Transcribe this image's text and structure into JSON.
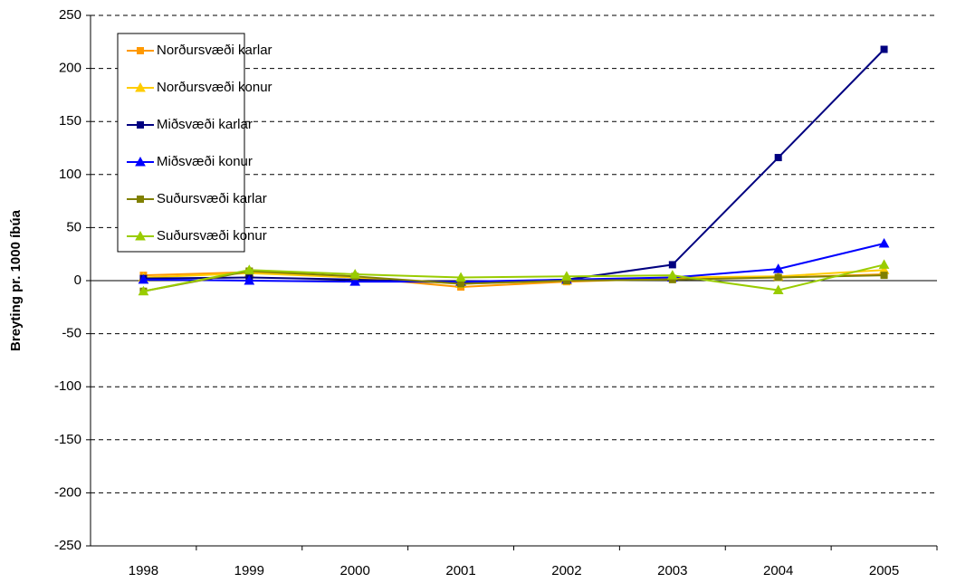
{
  "chart_data": {
    "type": "line",
    "y_label": "Breyting pr. 1000 íbúa",
    "categories": [
      "1998",
      "1999",
      "2000",
      "2001",
      "2002",
      "2003",
      "2004",
      "2005"
    ],
    "series": [
      {
        "name": "Norðursvæði karlar",
        "color": "#ff9900",
        "marker": "square",
        "values": [
          5,
          8,
          3,
          -6,
          -1,
          2,
          3,
          6
        ]
      },
      {
        "name": "Norðursvæði konur",
        "color": "#ffcc00",
        "marker": "triangle",
        "values": [
          3,
          7,
          3,
          -3,
          0,
          3,
          4,
          10
        ]
      },
      {
        "name": "Miðsvæði karlar",
        "color": "#000080",
        "marker": "square",
        "values": [
          2,
          3,
          1,
          -2,
          1,
          15,
          116,
          218
        ]
      },
      {
        "name": "Miðsvæði konur",
        "color": "#0000ff",
        "marker": "triangle",
        "values": [
          1,
          0,
          -1,
          -1,
          1,
          3,
          11,
          35
        ]
      },
      {
        "name": "Suðursvæði karlar",
        "color": "#808000",
        "marker": "square",
        "values": [
          -10,
          9,
          4,
          -3,
          0,
          1,
          3,
          5
        ]
      },
      {
        "name": "Suðursvæði konur",
        "color": "#99cc00",
        "marker": "triangle",
        "values": [
          -10,
          10,
          6,
          3,
          4,
          5,
          -9,
          15
        ]
      }
    ],
    "ylim": [
      -250,
      250
    ],
    "yticks": [
      -250,
      -200,
      -150,
      -100,
      -50,
      0,
      50,
      100,
      150,
      200,
      250
    ],
    "grid": true,
    "legend": "upper left"
  }
}
